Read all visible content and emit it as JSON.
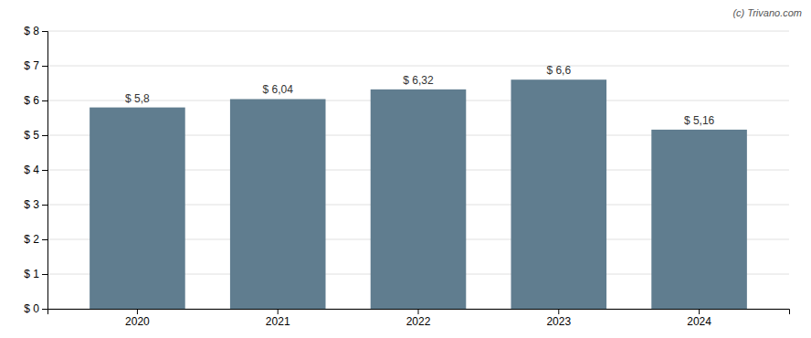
{
  "chart_data": {
    "type": "bar",
    "categories": [
      "2020",
      "2021",
      "2022",
      "2023",
      "2024"
    ],
    "values": [
      5.8,
      6.04,
      6.32,
      6.6,
      5.16
    ],
    "value_labels": [
      "$ 5,8",
      "$ 6,04",
      "$ 6,32",
      "$ 6,6",
      "$ 5,16"
    ],
    "data_labels": true,
    "color": "#607d8f",
    "ylim": [
      0,
      8
    ],
    "yticks": [
      {
        "value": 0,
        "label": "$ 0"
      },
      {
        "value": 1,
        "label": "$ 1"
      },
      {
        "value": 2,
        "label": "$ 2"
      },
      {
        "value": 3,
        "label": "$ 3"
      },
      {
        "value": 4,
        "label": "$ 4"
      },
      {
        "value": 5,
        "label": "$ 5"
      },
      {
        "value": 6,
        "label": "$ 6"
      },
      {
        "value": 7,
        "label": "$ 7"
      },
      {
        "value": 8,
        "label": "$ 8"
      }
    ],
    "grid": true,
    "annotations": [
      "(c) Trivano.com"
    ]
  }
}
